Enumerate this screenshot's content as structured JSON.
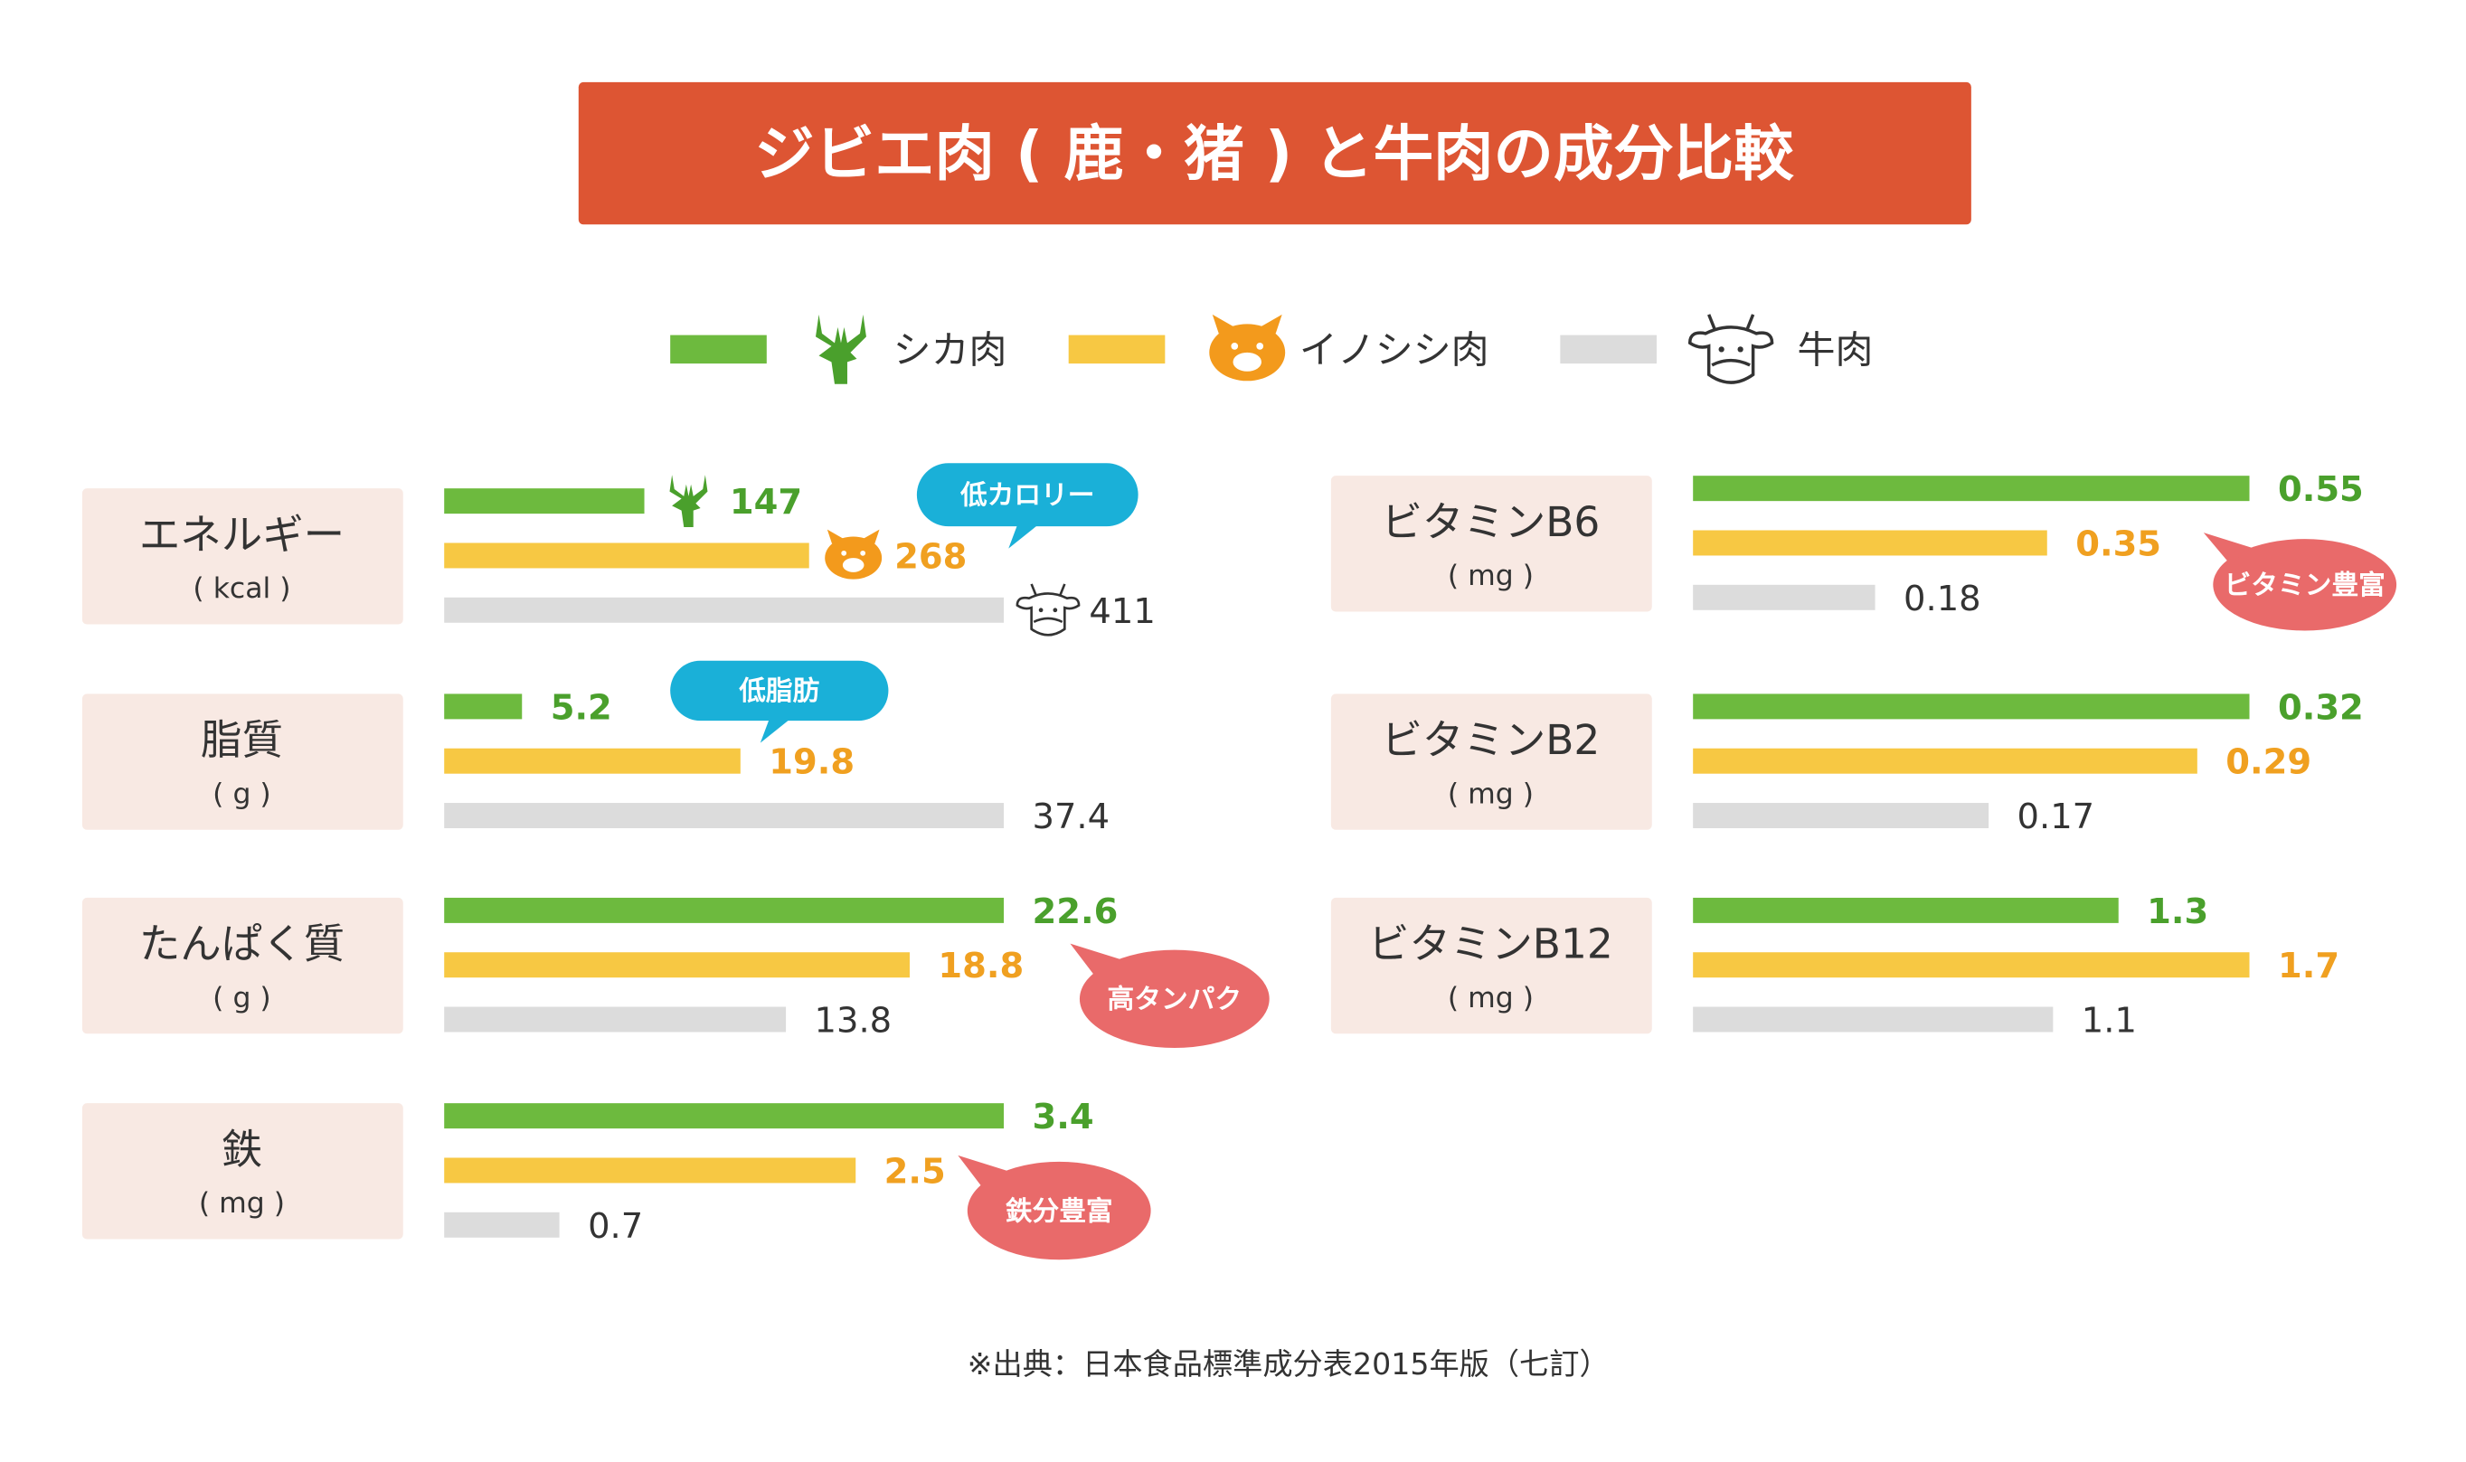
{
  "title": "ジビエ肉 ( 鹿・猪 ) と牛肉の成分比較",
  "legend": [
    {
      "name": "シカ肉",
      "color": "#6dba3e",
      "text_color": "#4aa02c"
    },
    {
      "name": "イノシシ肉",
      "color": "#f7c843",
      "text_color": "#f0a020"
    },
    {
      "name": "牛肉",
      "color": "#dcdcdc",
      "text_color": "#333333"
    }
  ],
  "source": "※出典：日本食品標準成分表2015年版（七訂）",
  "chart_data": [
    {
      "type": "bar",
      "title": "エネルギー",
      "subtitle": "( kcal )",
      "values": [
        147,
        268,
        411
      ],
      "annotation": "低カロリー"
    },
    {
      "type": "bar",
      "title": "脂質",
      "subtitle": "( g )",
      "values": [
        5.2,
        19.8,
        37.4
      ],
      "annotation": "低脂肪"
    },
    {
      "type": "bar",
      "title": "たんぱく質",
      "subtitle": "( g )",
      "values": [
        22.6,
        18.8,
        13.8
      ],
      "annotation": "高タンパク"
    },
    {
      "type": "bar",
      "title": "鉄",
      "subtitle": "( mg )",
      "values": [
        3.4,
        2.5,
        0.7
      ],
      "annotation": "鉄分豊富"
    },
    {
      "type": "bar",
      "title": "ビタミンB6",
      "subtitle": "( mg )",
      "values": [
        0.55,
        0.35,
        0.18
      ],
      "annotation": "ビタミン豊富"
    },
    {
      "type": "bar",
      "title": "ビタミンB2",
      "subtitle": "( mg )",
      "values": [
        0.32,
        0.29,
        0.17
      ]
    },
    {
      "type": "bar",
      "title": "ビタミンB12",
      "subtitle": "( mg )",
      "values": [
        1.3,
        1.7,
        1.1
      ]
    }
  ]
}
